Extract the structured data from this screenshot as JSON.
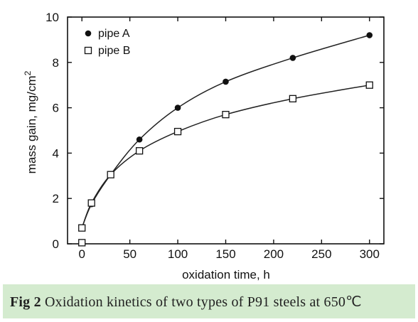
{
  "chart_data": {
    "type": "line",
    "xlabel": "oxidation time, h",
    "ylabel": "mass gain, mg/cm",
    "ylabel_sup": "2",
    "xlim": [
      -15,
      315
    ],
    "ylim": [
      0,
      10
    ],
    "xticks": [
      0,
      50,
      100,
      150,
      200,
      250,
      300
    ],
    "yticks": [
      0,
      2,
      4,
      6,
      8,
      10
    ],
    "legend_position": "top-left",
    "series": [
      {
        "name": "pipe A",
        "marker": "filled-circle",
        "x": [
          0,
          10,
          30,
          60,
          100,
          150,
          220,
          300
        ],
        "y": [
          0.7,
          1.75,
          3.05,
          4.6,
          6.0,
          7.15,
          8.2,
          9.2
        ]
      },
      {
        "name": "pipe B",
        "marker": "open-square",
        "x": [
          0,
          0,
          10,
          30,
          60,
          100,
          150,
          220,
          300
        ],
        "y": [
          0.05,
          0.7,
          1.8,
          3.05,
          4.1,
          4.95,
          5.7,
          6.4,
          7.0
        ]
      }
    ]
  },
  "caption": {
    "label": "Fig 2",
    "text": "Oxidation kinetics of two types of P91 steels at 650℃"
  },
  "colors": {
    "caption_bg": "#d4ebcf",
    "ink": "#111111"
  }
}
